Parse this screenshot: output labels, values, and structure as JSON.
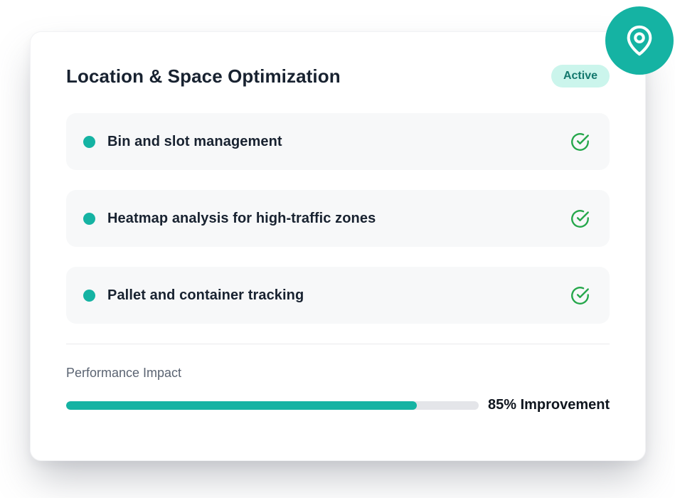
{
  "card": {
    "title": "Location & Space Optimization",
    "status_badge": "Active",
    "features": [
      {
        "label": "Bin and slot management"
      },
      {
        "label": "Heatmap analysis for high-traffic zones"
      },
      {
        "label": "Pallet and container tracking"
      }
    ],
    "performance": {
      "label": "Performance Impact",
      "percent": 85,
      "value_label": "85% Improvement"
    }
  },
  "icons": {
    "corner": "map-pin-icon",
    "feature_status": "check-circle-icon",
    "feature_bullet": "dot-icon"
  },
  "colors": {
    "teal": "#15b3a3",
    "badge_bg": "#cbf5ec",
    "badge_text": "#13786d",
    "check_green": "#25a74b",
    "row_bg": "#f7f8f9",
    "track": "#e4e5e9",
    "divider": "#e9eaec",
    "text_dark": "#182230",
    "text_black": "#10161f",
    "text_gray": "#5b6472"
  }
}
